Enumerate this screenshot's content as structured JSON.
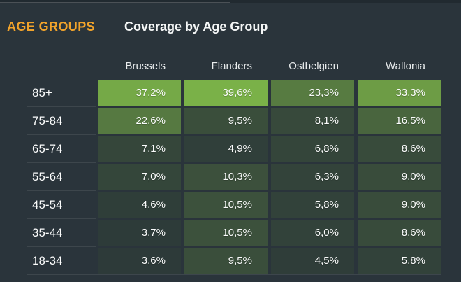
{
  "header": {
    "section_label": "AGE GROUPS",
    "title": "Coverage by Age Group"
  },
  "colors": {
    "background": "#2a343b",
    "top_bar": "#212a30",
    "accent_orange": "#f1a32b",
    "title_text": "#f4f6f6",
    "header_text": "#e9eced",
    "value_text": "#fbfcfc",
    "scale_low": "#2d3a39",
    "scale_high": "#7ab148"
  },
  "chart_data": {
    "type": "heatmap",
    "title": "Coverage by Age Group",
    "columns": [
      "Brussels",
      "Flanders",
      "Ostbelgien",
      "Wallonia"
    ],
    "rows": [
      "85+",
      "75-84",
      "65-74",
      "55-64",
      "45-54",
      "35-44",
      "18-34"
    ],
    "values": [
      [
        37.2,
        39.6,
        23.3,
        33.3
      ],
      [
        22.6,
        9.5,
        8.1,
        16.5
      ],
      [
        7.1,
        4.9,
        6.8,
        8.6
      ],
      [
        7.0,
        10.3,
        6.3,
        9.0
      ],
      [
        4.6,
        10.5,
        5.8,
        9.0
      ],
      [
        3.7,
        10.5,
        6.0,
        8.6
      ],
      [
        3.6,
        9.5,
        4.5,
        5.8
      ]
    ],
    "display": [
      [
        "37,2%",
        "39,6%",
        "23,3%",
        "33,3%"
      ],
      [
        "22,6%",
        "9,5%",
        "8,1%",
        "16,5%"
      ],
      [
        "7,1%",
        "4,9%",
        "6,8%",
        "8,6%"
      ],
      [
        "7,0%",
        "10,3%",
        "6,3%",
        "9,0%"
      ],
      [
        "4,6%",
        "10,5%",
        "5,8%",
        "9,0%"
      ],
      [
        "3,7%",
        "10,5%",
        "6,0%",
        "8,6%"
      ],
      [
        "3,6%",
        "9,5%",
        "4,5%",
        "5,8%"
      ]
    ],
    "value_format": "percent-comma-decimal",
    "color_scale": {
      "min_value": 3.5,
      "max_value": 39.6,
      "min_color": "#2d3a39",
      "max_color": "#7ab148"
    },
    "legend": "none",
    "grid": "off"
  }
}
